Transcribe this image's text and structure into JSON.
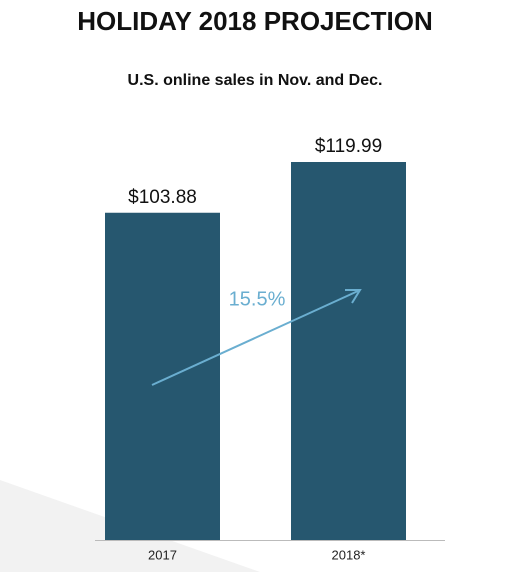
{
  "chart_data": {
    "type": "bar",
    "title": "HOLIDAY 2018 PROJECTION",
    "subtitle": "U.S. online sales in Nov. and Dec.",
    "categories": [
      "2017",
      "2018*"
    ],
    "values": [
      103.88,
      119.99
    ],
    "value_labels": [
      "$103.88",
      "$119.99"
    ],
    "color": "#26576f",
    "annotations": [
      {
        "text": "15.5%",
        "color": "#6aaed0"
      }
    ]
  }
}
